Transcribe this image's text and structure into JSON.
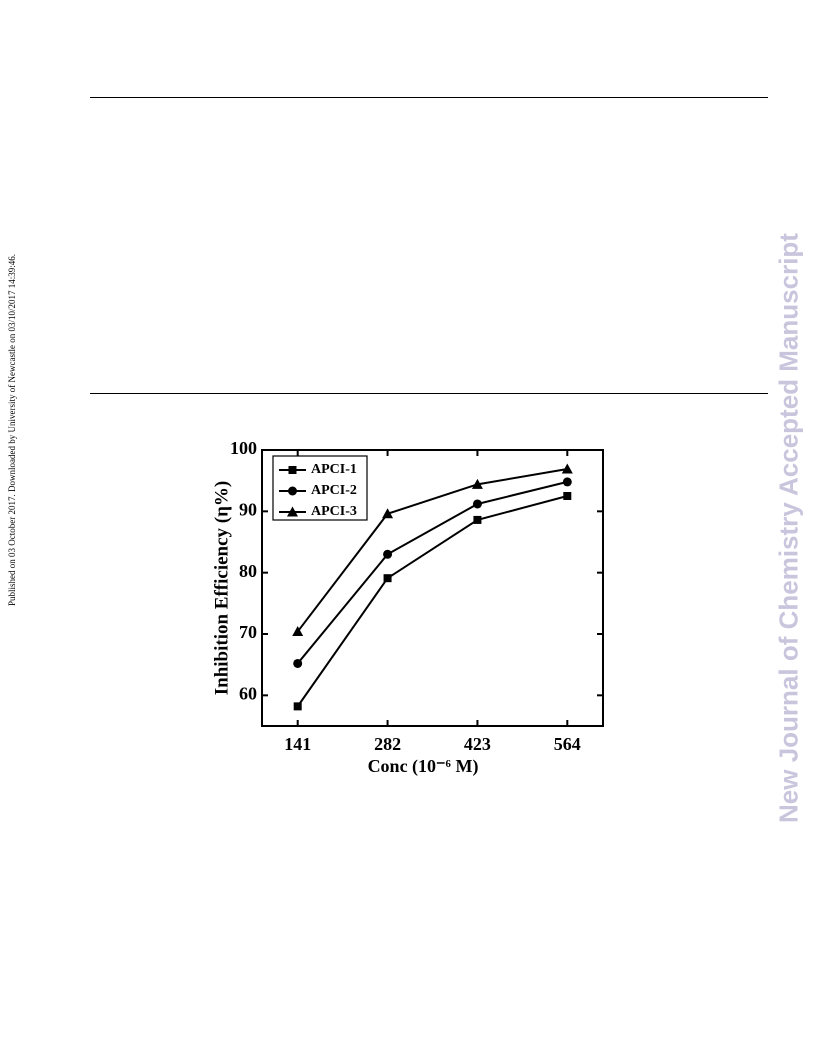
{
  "side_note": "Published on 03 October 2017. Downloaded by University of Newcastle on 03/10/2017 14:39:46.",
  "watermark": "New Journal of Chemistry Accepted Manuscript",
  "chart_data": {
    "type": "line",
    "ylabel": "Inhibition Efficiency (η%)",
    "xlabel": "Conc (10⁻⁶ M)",
    "x": [
      141,
      282,
      423,
      564
    ],
    "xlim": [
      85,
      620
    ],
    "xticks": [
      141,
      282,
      423,
      564
    ],
    "ylim": [
      55,
      100
    ],
    "yticks": [
      60,
      70,
      80,
      90,
      100
    ],
    "legend": "upper left",
    "series": [
      {
        "name": "APCI-1",
        "color": "#000000",
        "marker": "square",
        "values": [
          58.2,
          79.1,
          88.6,
          92.5
        ]
      },
      {
        "name": "APCI-2",
        "color": "#000000",
        "marker": "circle",
        "values": [
          65.2,
          83.0,
          91.2,
          94.8
        ]
      },
      {
        "name": "APCI-3",
        "color": "#000000",
        "marker": "triangle",
        "values": [
          70.4,
          89.6,
          94.4,
          96.9
        ]
      }
    ]
  }
}
